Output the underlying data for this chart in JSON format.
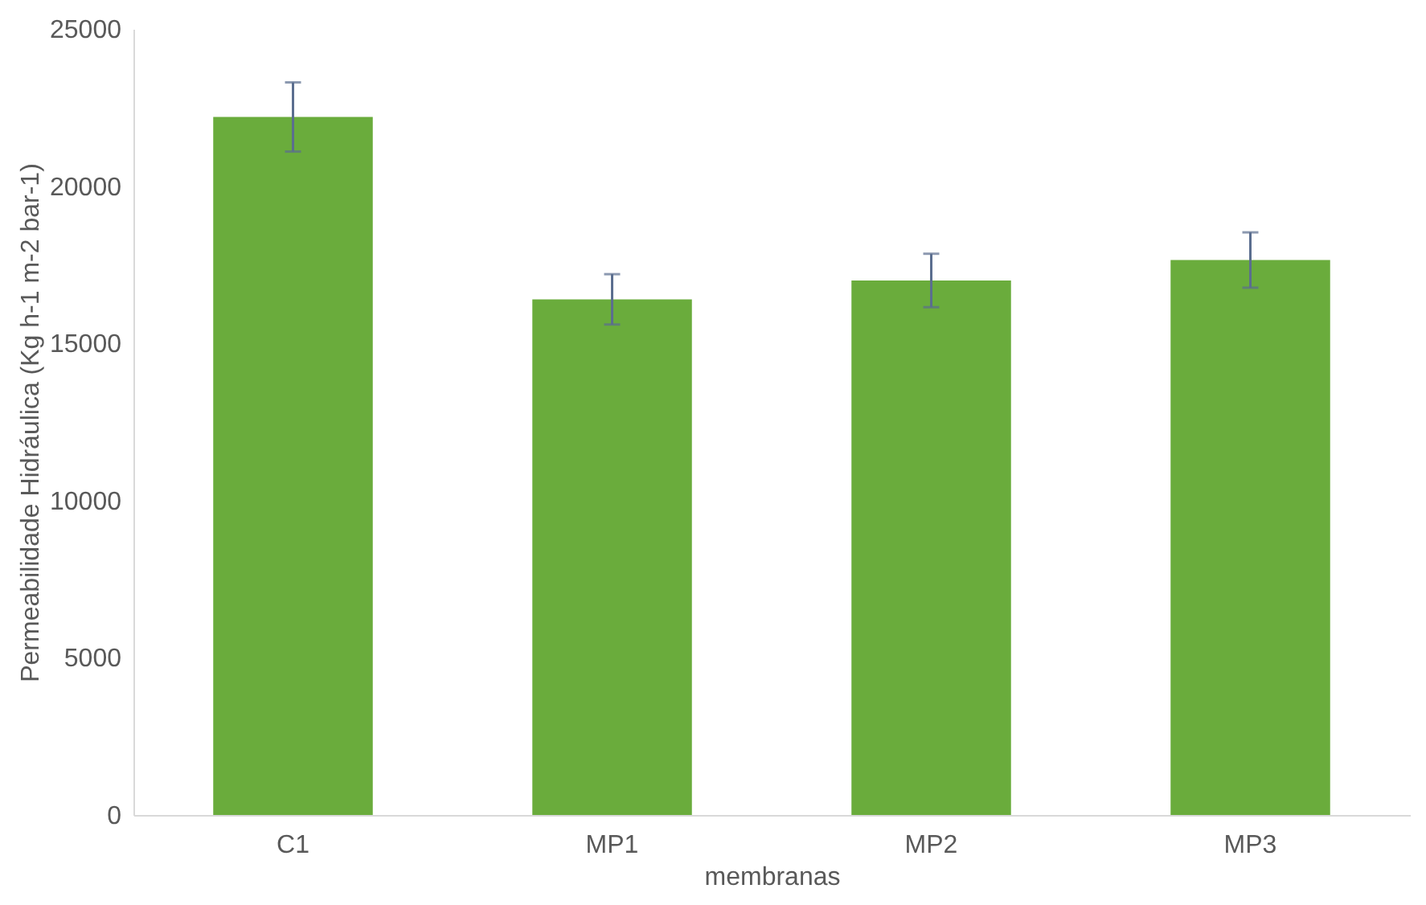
{
  "chart_data": {
    "type": "bar",
    "xlabel": "membranas",
    "ylabel": "Permeabilidade Hidráulica (Kg h-1 m-2 bar-1)",
    "categories": [
      "C1",
      "MP1",
      "MP2",
      "MP3"
    ],
    "values": [
      22200,
      16400,
      17000,
      17650
    ],
    "errors": [
      1100,
      800,
      850,
      880
    ],
    "color": "#6aac3c",
    "ylim": [
      0,
      25000
    ],
    "yticks": [
      0,
      5000,
      10000,
      15000,
      20000,
      25000
    ],
    "grid": false
  }
}
